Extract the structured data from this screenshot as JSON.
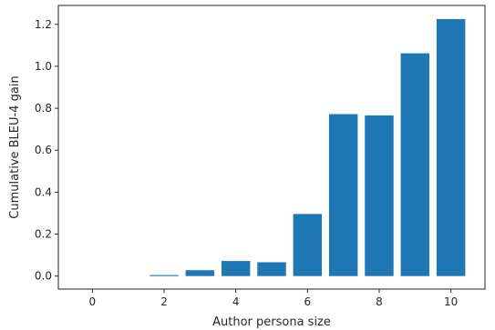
{
  "chart_data": {
    "type": "bar",
    "x": [
      1,
      2,
      3,
      4,
      5,
      6,
      7,
      8,
      9,
      10
    ],
    "values": [
      0.0,
      0.005,
      0.028,
      0.072,
      0.066,
      0.296,
      0.772,
      0.766,
      1.062,
      1.225
    ],
    "xlabel": "Author persona size",
    "ylabel": "Cumulative BLEU-4 gain",
    "xlim": [
      -0.95,
      10.95
    ],
    "ylim": [
      -0.062,
      1.29
    ],
    "xticks": [
      0,
      2,
      4,
      6,
      8,
      10
    ],
    "yticks": [
      0.0,
      0.2,
      0.4,
      0.6,
      0.8,
      1.0,
      1.2
    ],
    "bar_color": "#1f77b4",
    "grid": false,
    "legend": "none"
  }
}
